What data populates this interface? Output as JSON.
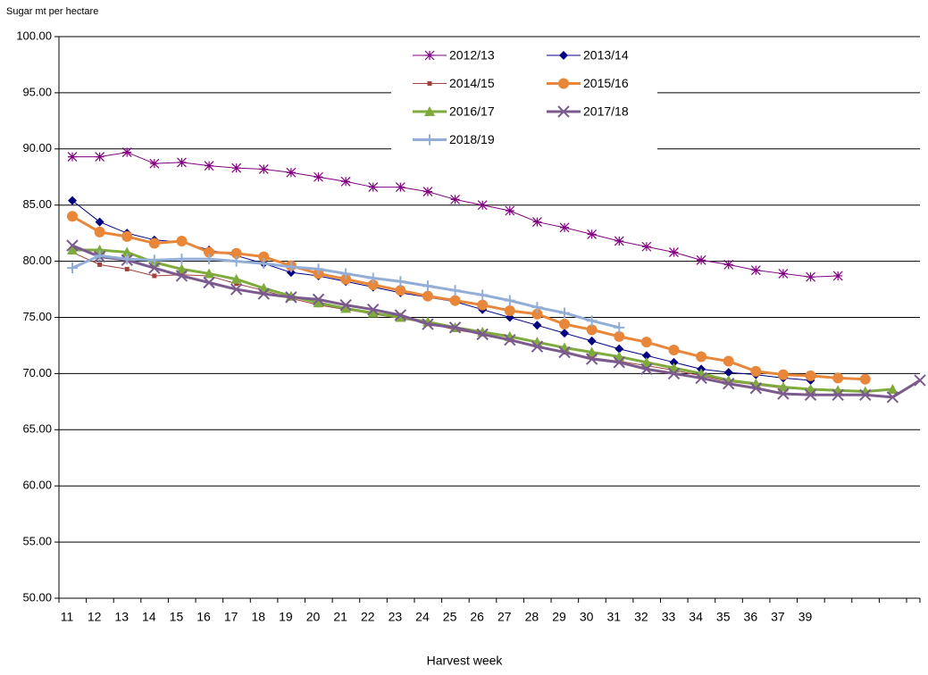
{
  "chart_data": {
    "type": "line",
    "y_axis_title": "Sugar mt per hectare",
    "x_axis_title": "Harvest week",
    "categories": [
      "11",
      "12",
      "13",
      "14",
      "15",
      "16",
      "17",
      "18",
      "19",
      "20",
      "21",
      "22",
      "23",
      "24",
      "25",
      "26",
      "27",
      "28",
      "29",
      "30",
      "31",
      "32",
      "33",
      "34",
      "35",
      "36",
      "37",
      "39",
      null,
      null,
      null,
      null
    ],
    "ylim": [
      50,
      100
    ],
    "yticks": [
      {
        "value": 50,
        "label": "50.00"
      },
      {
        "value": 55,
        "label": "55.00"
      },
      {
        "value": 60,
        "label": "60.00"
      },
      {
        "value": 65,
        "label": "65.00"
      },
      {
        "value": 70,
        "label": "70.00"
      },
      {
        "value": 75,
        "label": "75.00"
      },
      {
        "value": 80,
        "label": "80.00"
      },
      {
        "value": 85,
        "label": "85.00"
      },
      {
        "value": 90,
        "label": "90.00"
      },
      {
        "value": 95,
        "label": "95.00"
      },
      {
        "value": 100,
        "label": "100.00"
      }
    ],
    "grid": true,
    "legend": "top",
    "series": [
      {
        "name": "2012/13",
        "color": "#800080",
        "marker": "star",
        "line_width": 1,
        "values": [
          89.3,
          89.3,
          89.7,
          88.7,
          88.8,
          88.5,
          88.3,
          88.2,
          87.9,
          87.5,
          87.1,
          86.6,
          86.6,
          86.2,
          85.5,
          85.0,
          84.5,
          83.5,
          83.0,
          82.4,
          81.8,
          81.3,
          80.8,
          80.1,
          79.7,
          79.2,
          78.9,
          78.6,
          78.7,
          null,
          null,
          null
        ]
      },
      {
        "name": "2013/14",
        "color": "#000080",
        "marker": "diamond",
        "line_width": 1,
        "values": [
          85.4,
          83.5,
          82.5,
          81.9,
          81.7,
          81.0,
          80.5,
          79.8,
          79.0,
          78.7,
          78.2,
          77.7,
          77.2,
          76.8,
          76.4,
          75.7,
          75.0,
          74.3,
          73.6,
          72.9,
          72.2,
          71.6,
          71.0,
          70.4,
          70.1,
          69.9,
          69.6,
          69.4,
          null,
          null,
          null,
          null
        ]
      },
      {
        "name": "2014/15",
        "color": "#a0403a",
        "marker": "square",
        "line_width": 1,
        "values": [
          80.8,
          79.7,
          79.3,
          78.7,
          78.8,
          78.7,
          78.0,
          77.4,
          76.7,
          76.1,
          75.7,
          75.3,
          74.9,
          74.5,
          73.9,
          73.5,
          73.0,
          72.5,
          71.9,
          71.4,
          71.1,
          70.7,
          70.3,
          69.8,
          69.3,
          69.0,
          68.7,
          68.6,
          null,
          null,
          null,
          null
        ]
      },
      {
        "name": "2015/16",
        "color": "#e8873a",
        "marker": "circle",
        "line_width": 3,
        "values": [
          84.0,
          82.6,
          82.2,
          81.6,
          81.8,
          80.8,
          80.7,
          80.4,
          79.6,
          78.9,
          78.4,
          77.9,
          77.4,
          76.9,
          76.5,
          76.1,
          75.6,
          75.3,
          74.4,
          73.9,
          73.3,
          72.8,
          72.1,
          71.5,
          71.1,
          70.2,
          69.9,
          69.8,
          69.6,
          69.5,
          null,
          null
        ]
      },
      {
        "name": "2016/17",
        "color": "#7faa3c",
        "marker": "triangle",
        "line_width": 3,
        "values": [
          81.0,
          81.0,
          80.8,
          79.9,
          79.3,
          78.9,
          78.4,
          77.6,
          76.9,
          76.3,
          75.8,
          75.4,
          75.0,
          74.6,
          74.1,
          73.7,
          73.3,
          72.8,
          72.3,
          71.9,
          71.5,
          71.0,
          70.5,
          70.0,
          69.4,
          69.1,
          68.8,
          68.6,
          68.5,
          68.4,
          68.6,
          null
        ]
      },
      {
        "name": "2017/18",
        "color": "#7b5a8e",
        "marker": "x",
        "line_width": 3,
        "values": [
          81.4,
          80.4,
          80.1,
          79.4,
          78.7,
          78.1,
          77.5,
          77.1,
          76.8,
          76.6,
          76.1,
          75.7,
          75.2,
          74.4,
          74.1,
          73.5,
          73.0,
          72.4,
          71.9,
          71.3,
          71.0,
          70.4,
          70.0,
          69.6,
          69.1,
          68.7,
          68.2,
          68.1,
          68.1,
          68.1,
          67.9,
          69.4
        ]
      },
      {
        "name": "2018/19",
        "color": "#93aed6",
        "marker": "plus",
        "line_width": 3,
        "values": [
          79.4,
          80.5,
          80.2,
          80.1,
          80.2,
          80.2,
          80.0,
          79.8,
          79.5,
          79.3,
          78.9,
          78.5,
          78.2,
          77.8,
          77.4,
          77.0,
          76.5,
          75.9,
          75.4,
          74.7,
          74.1,
          null,
          null,
          null,
          null,
          null,
          null,
          null,
          null,
          null,
          null,
          null
        ]
      }
    ]
  }
}
